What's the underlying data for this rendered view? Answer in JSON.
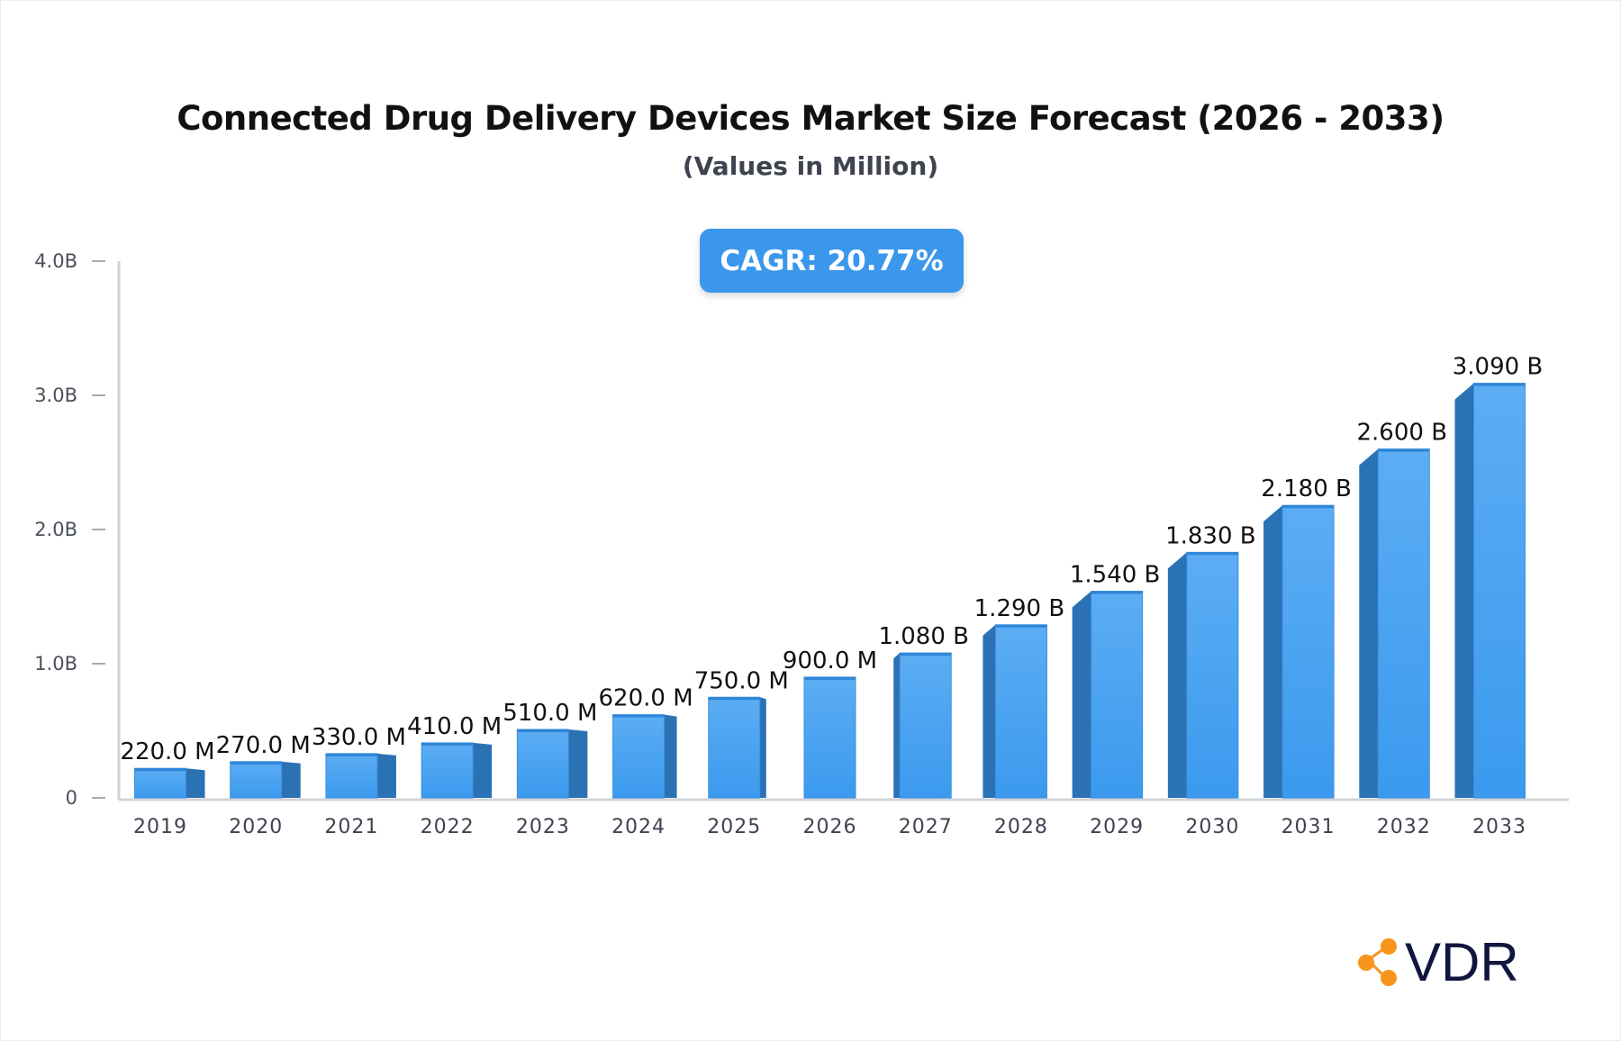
{
  "chart_data": {
    "type": "bar",
    "title": "Connected Drug Delivery Devices Market Size Forecast (2026 - 2033)",
    "subtitle": "(Values in Million)",
    "categories": [
      "2019",
      "2020",
      "2021",
      "2022",
      "2023",
      "2024",
      "2025",
      "2026",
      "2027",
      "2028",
      "2029",
      "2030",
      "2031",
      "2032",
      "2033"
    ],
    "values": [
      220,
      270,
      330,
      410,
      510,
      620,
      750,
      900,
      1080,
      1290,
      1540,
      1830,
      2180,
      2600,
      3090
    ],
    "data_labels": [
      "220.0 M",
      "270.0 M",
      "330.0 M",
      "410.0 M",
      "510.0 M",
      "620.0 M",
      "750.0 M",
      "900.0 M",
      "1.080 B",
      "1.290 B",
      "1.540 B",
      "1.830 B",
      "2.180 B",
      "2.600 B",
      "3.090 B"
    ],
    "ylim": [
      0,
      4000
    ],
    "yticks": [
      0,
      1000,
      2000,
      3000,
      4000
    ],
    "ytick_labels": [
      "0",
      "1.0B",
      "2.0B",
      "3.0B",
      "4.0B"
    ],
    "grid": false,
    "colors": {
      "bar_front": "#4da6f2",
      "bar_side": "#2b72b5",
      "axis": "#d0d3da"
    }
  },
  "badge": {
    "label": "CAGR: 20.77%",
    "color": "#3a97ec"
  },
  "logo": {
    "text": "VDR",
    "icon": "share-network-icon",
    "icon_color": "#f7941d"
  }
}
